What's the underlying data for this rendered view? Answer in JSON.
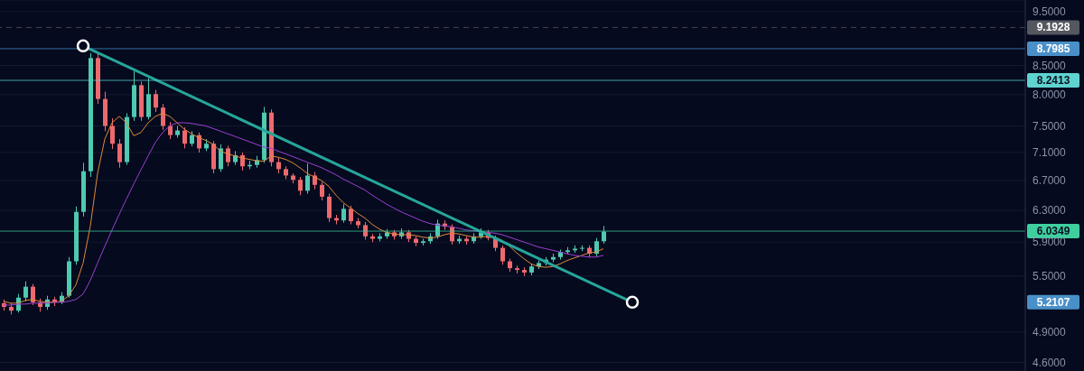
{
  "chart_data": {
    "type": "candlestick",
    "categories": [
      null,
      null,
      null,
      null,
      null,
      null,
      null,
      null,
      null,
      null,
      null,
      null,
      null,
      null,
      null,
      null,
      null,
      null,
      null,
      null,
      null,
      null,
      null,
      null,
      null,
      null,
      null,
      null,
      null,
      null,
      null,
      null,
      null,
      null,
      null,
      null,
      null,
      null,
      null,
      null,
      null,
      null,
      null,
      null,
      null,
      null,
      null,
      null,
      null,
      null,
      null,
      null,
      null,
      null,
      null,
      null,
      null,
      null,
      null,
      null,
      null,
      null,
      null,
      null,
      null,
      null,
      null,
      null,
      null,
      null,
      null,
      null,
      null,
      null,
      null,
      null,
      null,
      null,
      null,
      null,
      null,
      null,
      null,
      null,
      null,
      null,
      null,
      null
    ],
    "ohlc": [
      [
        5.2,
        5.24,
        5.12,
        5.16
      ],
      [
        5.16,
        5.2,
        5.08,
        5.12
      ],
      [
        5.12,
        5.3,
        5.1,
        5.26
      ],
      [
        5.26,
        5.44,
        5.22,
        5.38
      ],
      [
        5.38,
        5.41,
        5.18,
        5.21
      ],
      [
        5.21,
        5.25,
        5.11,
        5.16
      ],
      [
        5.16,
        5.28,
        5.13,
        5.24
      ],
      [
        5.24,
        5.27,
        5.17,
        5.21
      ],
      [
        5.21,
        5.32,
        5.19,
        5.28
      ],
      [
        5.28,
        5.72,
        5.26,
        5.67
      ],
      [
        5.67,
        6.35,
        5.63,
        6.28
      ],
      [
        6.28,
        6.95,
        6.22,
        6.83
      ],
      [
        6.83,
        8.72,
        6.75,
        8.63
      ],
      [
        8.63,
        8.7,
        7.85,
        7.93
      ],
      [
        7.93,
        8.05,
        7.42,
        7.5
      ],
      [
        7.5,
        7.62,
        7.15,
        7.23
      ],
      [
        7.23,
        7.3,
        6.88,
        6.96
      ],
      [
        6.96,
        7.7,
        6.92,
        7.64
      ],
      [
        7.64,
        8.4,
        7.58,
        8.16
      ],
      [
        8.16,
        8.22,
        7.58,
        7.64
      ],
      [
        7.64,
        8.28,
        7.6,
        8.01
      ],
      [
        8.01,
        8.08,
        7.72,
        7.79
      ],
      [
        7.79,
        7.85,
        7.44,
        7.5
      ],
      [
        7.5,
        7.56,
        7.3,
        7.36
      ],
      [
        7.36,
        7.5,
        7.32,
        7.43
      ],
      [
        7.43,
        7.48,
        7.16,
        7.23
      ],
      [
        7.23,
        7.42,
        7.19,
        7.36
      ],
      [
        7.36,
        7.4,
        7.1,
        7.16
      ],
      [
        7.16,
        7.3,
        7.12,
        7.23
      ],
      [
        7.23,
        7.27,
        6.8,
        6.86
      ],
      [
        6.86,
        7.22,
        6.82,
        7.16
      ],
      [
        7.16,
        7.2,
        6.9,
        6.96
      ],
      [
        6.96,
        7.12,
        6.92,
        7.06
      ],
      [
        7.06,
        7.1,
        6.84,
        6.9
      ],
      [
        6.9,
        6.98,
        6.86,
        6.92
      ],
      [
        6.92,
        7.05,
        6.88,
        6.99
      ],
      [
        6.99,
        7.8,
        6.95,
        7.71
      ],
      [
        7.71,
        7.76,
        6.9,
        6.96
      ],
      [
        6.96,
        7.02,
        6.8,
        6.86
      ],
      [
        6.86,
        6.9,
        6.72,
        6.77
      ],
      [
        6.77,
        6.8,
        6.66,
        6.71
      ],
      [
        6.71,
        6.75,
        6.5,
        6.56
      ],
      [
        6.56,
        6.94,
        6.52,
        6.77
      ],
      [
        6.77,
        6.82,
        6.58,
        6.64
      ],
      [
        6.64,
        6.68,
        6.43,
        6.48
      ],
      [
        6.48,
        6.52,
        6.15,
        6.2
      ],
      [
        6.2,
        6.24,
        6.12,
        6.17
      ],
      [
        6.17,
        6.38,
        6.14,
        6.32
      ],
      [
        6.32,
        6.36,
        6.12,
        6.16
      ],
      [
        6.16,
        6.2,
        6.07,
        6.11
      ],
      [
        6.11,
        6.15,
        5.93,
        5.97
      ],
      [
        5.97,
        6.0,
        5.9,
        5.94
      ],
      [
        5.94,
        6.01,
        5.91,
        5.97
      ],
      [
        5.97,
        6.06,
        5.94,
        6.02
      ],
      [
        6.02,
        6.05,
        5.93,
        5.97
      ],
      [
        5.97,
        6.07,
        5.94,
        6.02
      ],
      [
        6.02,
        6.05,
        5.9,
        5.94
      ],
      [
        5.94,
        5.97,
        5.85,
        5.89
      ],
      [
        5.89,
        5.94,
        5.86,
        5.91
      ],
      [
        5.91,
        6.01,
        5.88,
        5.97
      ],
      [
        5.97,
        6.18,
        5.94,
        6.13
      ],
      [
        6.13,
        6.17,
        6.05,
        6.09
      ],
      [
        6.09,
        6.12,
        5.87,
        5.91
      ],
      [
        5.91,
        5.98,
        5.88,
        5.94
      ],
      [
        5.94,
        5.97,
        5.87,
        5.91
      ],
      [
        5.91,
        6.01,
        5.88,
        5.97
      ],
      [
        5.97,
        6.07,
        5.94,
        6.02
      ],
      [
        6.02,
        6.05,
        5.92,
        5.95
      ],
      [
        5.95,
        5.98,
        5.79,
        5.83
      ],
      [
        5.83,
        5.86,
        5.63,
        5.67
      ],
      [
        5.67,
        5.7,
        5.55,
        5.59
      ],
      [
        5.59,
        5.62,
        5.53,
        5.57
      ],
      [
        5.57,
        5.6,
        5.5,
        5.54
      ],
      [
        5.54,
        5.64,
        5.51,
        5.61
      ],
      [
        5.61,
        5.68,
        5.58,
        5.65
      ],
      [
        5.65,
        5.72,
        5.62,
        5.69
      ],
      [
        5.69,
        5.76,
        5.66,
        5.72
      ],
      [
        5.72,
        5.81,
        5.69,
        5.78
      ],
      [
        5.78,
        5.84,
        5.75,
        5.8
      ],
      [
        5.8,
        5.86,
        5.77,
        5.82
      ],
      [
        5.82,
        5.86,
        5.79,
        5.83
      ],
      [
        5.83,
        5.86,
        5.72,
        5.76
      ],
      [
        5.76,
        5.95,
        5.73,
        5.91
      ],
      [
        5.91,
        6.1,
        5.88,
        6.03
      ],
      null,
      null,
      null,
      null
    ],
    "colors": [
      "#ec6a6e",
      "#ec6a6e",
      "#4fc9b0",
      "#4fc9b0",
      "#ec6a6e",
      "#ec6a6e",
      "#4fc9b0",
      "#ec6a6e",
      "#4fc9b0",
      "#4fc9b0",
      "#4fc9b0",
      "#4fc9b0",
      "#4fc9b0",
      "#ec6a6e",
      "#ec6a6e",
      "#ec6a6e",
      "#ec6a6e",
      "#4fc9b0",
      "#4fc9b0",
      "#ec6a6e",
      "#4fc9b0",
      "#ec6a6e",
      "#ec6a6e",
      "#ec6a6e",
      "#4fc9b0",
      "#ec6a6e",
      "#4fc9b0",
      "#ec6a6e",
      "#4fc9b0",
      "#ec6a6e",
      "#4fc9b0",
      "#ec6a6e",
      "#4fc9b0",
      "#ec6a6e",
      "#4fc9b0",
      "#4fc9b0",
      "#4fc9b0",
      "#ec6a6e",
      "#ec6a6e",
      "#ec6a6e",
      "#ec6a6e",
      "#ec6a6e",
      "#4fc9b0",
      "#ec6a6e",
      "#ec6a6e",
      "#ec6a6e",
      "#ec6a6e",
      "#4fc9b0",
      "#ec6a6e",
      "#ec6a6e",
      "#ec6a6e",
      "#ec6a6e",
      "#4fc9b0",
      "#4fc9b0",
      "#ec6a6e",
      "#4fc9b0",
      "#ec6a6e",
      "#ec6a6e",
      "#4fc9b0",
      "#4fc9b0",
      "#4fc9b0",
      "#ec6a6e",
      "#ec6a6e",
      "#4fc9b0",
      "#ec6a6e",
      "#4fc9b0",
      "#4fc9b0",
      "#ec6a6e",
      "#ec6a6e",
      "#ec6a6e",
      "#ec6a6e",
      "#ec6a6e",
      "#ec6a6e",
      "#4fc9b0",
      "#4fc9b0",
      "#4fc9b0",
      "#4fc9b0",
      "#4fc9b0",
      "#4fc9b0",
      "#4fc9b0",
      "#4fc9b0",
      "#ec6a6e",
      "#4fc9b0",
      "#4fc9b0",
      null,
      null,
      null,
      null
    ],
    "series": [
      {
        "type": "line",
        "color": "#e0893a",
        "values": [
          5.22,
          5.2,
          5.2,
          5.23,
          5.24,
          5.22,
          5.21,
          5.21,
          5.22,
          5.28,
          5.4,
          5.65,
          6.1,
          6.8,
          7.3,
          7.55,
          7.65,
          7.55,
          7.35,
          7.4,
          7.55,
          7.65,
          7.7,
          7.65,
          7.55,
          7.45,
          7.38,
          7.32,
          7.28,
          7.22,
          7.12,
          7.08,
          7.05,
          7.02,
          7.0,
          6.98,
          6.97,
          7.05,
          7.03,
          7.0,
          6.95,
          6.88,
          6.8,
          6.75,
          6.7,
          6.62,
          6.5,
          6.4,
          6.33,
          6.26,
          6.2,
          6.12,
          6.06,
          6.02,
          6.0,
          5.99,
          5.99,
          5.98,
          5.96,
          5.95,
          5.96,
          5.99,
          6.01,
          6.0,
          5.98,
          5.96,
          5.96,
          5.97,
          5.96,
          5.92,
          5.85,
          5.77,
          5.7,
          5.64,
          5.61,
          5.6,
          5.61,
          5.64,
          5.68,
          5.71,
          5.74,
          5.77,
          5.78,
          5.82,
          null,
          null,
          null,
          null
        ]
      },
      {
        "type": "line",
        "color": "#9b3fd0",
        "values": [
          5.18,
          5.18,
          5.19,
          5.19,
          5.2,
          5.2,
          5.2,
          5.21,
          5.21,
          5.22,
          5.24,
          5.3,
          5.45,
          5.65,
          5.85,
          6.05,
          6.25,
          6.45,
          6.65,
          6.85,
          7.05,
          7.25,
          7.4,
          7.5,
          7.55,
          7.55,
          7.54,
          7.52,
          7.5,
          7.46,
          7.42,
          7.38,
          7.34,
          7.3,
          7.26,
          7.22,
          7.18,
          7.16,
          7.12,
          7.08,
          7.04,
          7.0,
          6.96,
          6.92,
          6.88,
          6.83,
          6.78,
          6.72,
          6.67,
          6.62,
          6.57,
          6.5,
          6.44,
          6.38,
          6.33,
          6.28,
          6.24,
          6.2,
          6.16,
          6.13,
          6.11,
          6.1,
          6.09,
          6.07,
          6.05,
          6.04,
          6.03,
          6.02,
          6.01,
          5.99,
          5.96,
          5.93,
          5.9,
          5.87,
          5.84,
          5.82,
          5.8,
          5.78,
          5.76,
          5.74,
          5.73,
          5.72,
          5.72,
          5.74,
          null,
          null,
          null,
          null
        ]
      },
      {
        "type": "line",
        "color": "#26a69a",
        "marker": "circle",
        "values": [
          null,
          null,
          null,
          null,
          null,
          null,
          null,
          null,
          null,
          null,
          null,
          8.85,
          null,
          null,
          null,
          null,
          null,
          null,
          null,
          null,
          null,
          null,
          null,
          null,
          null,
          null,
          null,
          null,
          null,
          null,
          null,
          null,
          null,
          null,
          null,
          null,
          null,
          null,
          null,
          null,
          null,
          null,
          null,
          null,
          null,
          null,
          null,
          null,
          null,
          null,
          null,
          null,
          null,
          null,
          null,
          null,
          null,
          null,
          null,
          null,
          null,
          null,
          null,
          null,
          null,
          null,
          null,
          null,
          null,
          null,
          null,
          null,
          null,
          null,
          null,
          null,
          null,
          null,
          null,
          null,
          null,
          null,
          null,
          null,
          null,
          null,
          null,
          5.21
        ]
      }
    ],
    "log": true,
    "ylim": [
      4.52,
      9.73
    ],
    "yticks": [
      {
        "value": 9.5,
        "label": "9.5000"
      },
      {
        "value": 8.5,
        "label": "8.5000"
      },
      {
        "value": 8.0,
        "label": "8.0000"
      },
      {
        "value": 7.5,
        "label": "7.5000"
      },
      {
        "value": 7.1,
        "label": "7.1000"
      },
      {
        "value": 6.7,
        "label": "6.7000"
      },
      {
        "value": 6.3,
        "label": "6.3000"
      },
      {
        "value": 5.9,
        "label": "5.9000"
      },
      {
        "value": 5.5,
        "label": "5.5000"
      },
      {
        "value": 4.9,
        "label": "4.9000"
      },
      {
        "value": 4.6,
        "label": "4.6000"
      }
    ],
    "grid": "y",
    "tick_labels": "y",
    "ref_lines": [
      {
        "axis": "y",
        "value": 9.1928,
        "label": "9.1928",
        "color": "#55585f",
        "line_style": "dashed"
      },
      {
        "axis": "y",
        "value": 8.7985,
        "label": "8.7985",
        "color": "#4a90c8"
      },
      {
        "axis": "y",
        "value": 8.2413,
        "label": "8.2413",
        "color": "#5fd3d0"
      },
      {
        "axis": "y",
        "value": 6.0349,
        "label": "6.0349",
        "color": "#3fcf9f"
      }
    ],
    "annotations": [
      "5.2107"
    ]
  }
}
